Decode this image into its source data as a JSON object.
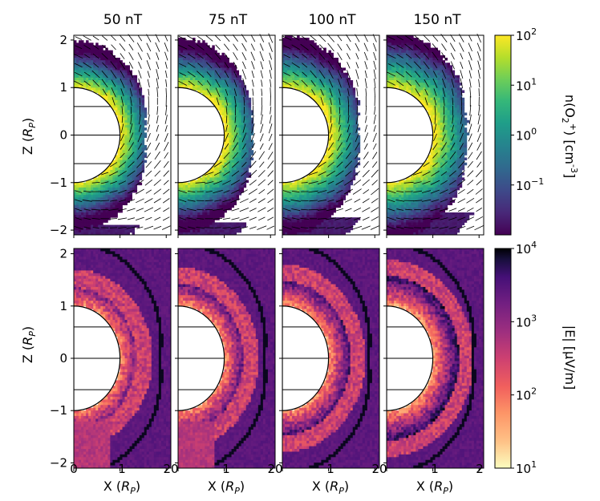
{
  "chart_data": {
    "type": "heatmap",
    "columns": [
      "50 nT",
      "75 nT",
      "100 nT",
      "150 nT"
    ],
    "x_ticks": [
      "0",
      "1",
      "2"
    ],
    "x_ticks_wrapped": [
      "0",
      "1",
      "20",
      "1",
      "20",
      "1",
      "20",
      "1",
      "2"
    ],
    "y_ticks": [
      "2",
      "1",
      "0",
      "−1",
      "−2"
    ],
    "xlabel": "X (R_P)",
    "ylabel": "Z (R_P)",
    "xlim": [
      0,
      2.1
    ],
    "ylim": [
      -2.1,
      2.1
    ],
    "planet_radius": 1.0,
    "panels": [
      {
        "name": "density",
        "quantity": "n(O2+)",
        "colorbar_label": "n(O₂⁺) [cm⁻³]",
        "colorbar_scale": "log",
        "colorbar_range": [
          0.01,
          100
        ],
        "colorbar_ticks": [
          "10",
          "10",
          "10",
          "10"
        ],
        "colorbar_exponents": [
          "2",
          "1",
          "0",
          "-1"
        ],
        "colormap": "viridis",
        "has_vector_arrows": true
      },
      {
        "name": "electric-field",
        "quantity": "|E|",
        "colorbar_label": "|E|  [μV/m]",
        "colorbar_scale": "log",
        "colorbar_range": [
          10,
          10000
        ],
        "colorbar_ticks": [
          "10",
          "10",
          "10",
          "10"
        ],
        "colorbar_exponents": [
          "4",
          "3",
          "2",
          "1"
        ],
        "colormap": "magma_r"
      }
    ]
  },
  "colors": {
    "viridis": [
      "#440154",
      "#482878",
      "#3e4989",
      "#31688e",
      "#26828e",
      "#1f9e89",
      "#35b779",
      "#6ece58",
      "#b5de2b",
      "#fde725"
    ],
    "magma_r": [
      "#fcfdbf",
      "#fec287",
      "#fd9567",
      "#f1605d",
      "#cd4071",
      "#9e2f7f",
      "#721f81",
      "#451077",
      "#180f3d",
      "#000004"
    ],
    "frame": "#000000"
  }
}
